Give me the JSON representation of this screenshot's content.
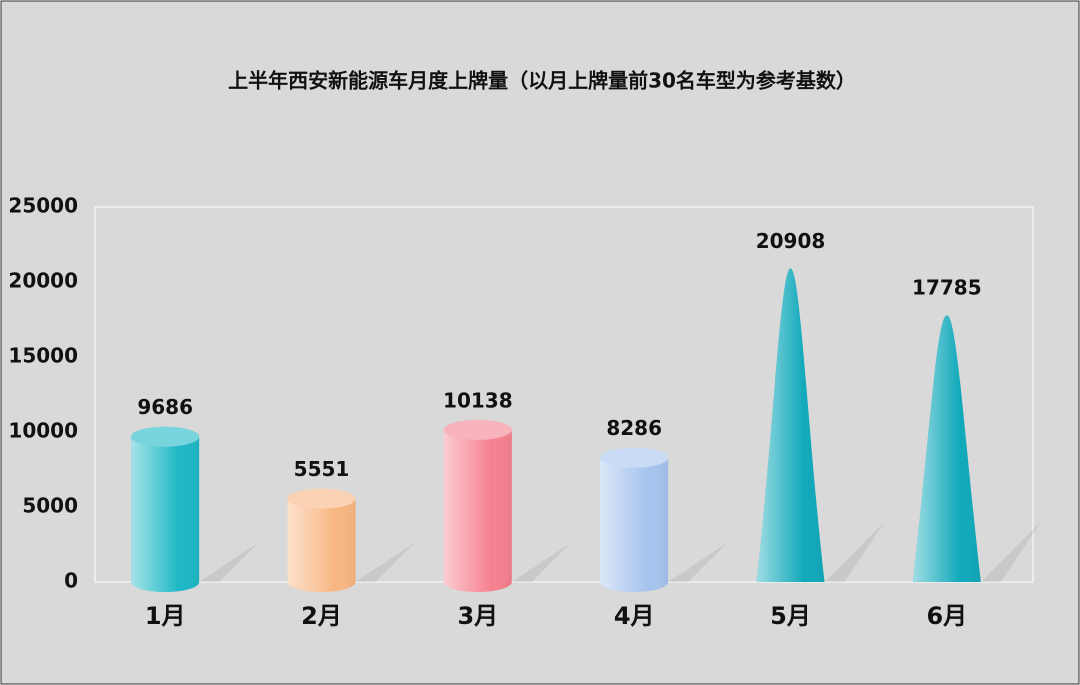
{
  "chart_data": {
    "type": "bar",
    "title": "上半年西安新能源车月度上牌量（以月上牌量前30名车型为参考基数）",
    "categories": [
      "1月",
      "2月",
      "3月",
      "4月",
      "5月",
      "6月"
    ],
    "values": [
      9686,
      5551,
      10138,
      8286,
      20908,
      17785
    ],
    "colors": [
      "#1fb8c6",
      "#f8b682",
      "#f6808f",
      "#a6c4ee",
      "#10a9bb",
      "#10a9bb"
    ],
    "bar_shapes": [
      "cylinder",
      "cylinder",
      "cylinder",
      "cylinder",
      "cone",
      "cone"
    ],
    "ylim": [
      0,
      25000
    ],
    "yticks": [
      0,
      5000,
      10000,
      15000,
      20000,
      25000
    ],
    "grid": false
  }
}
